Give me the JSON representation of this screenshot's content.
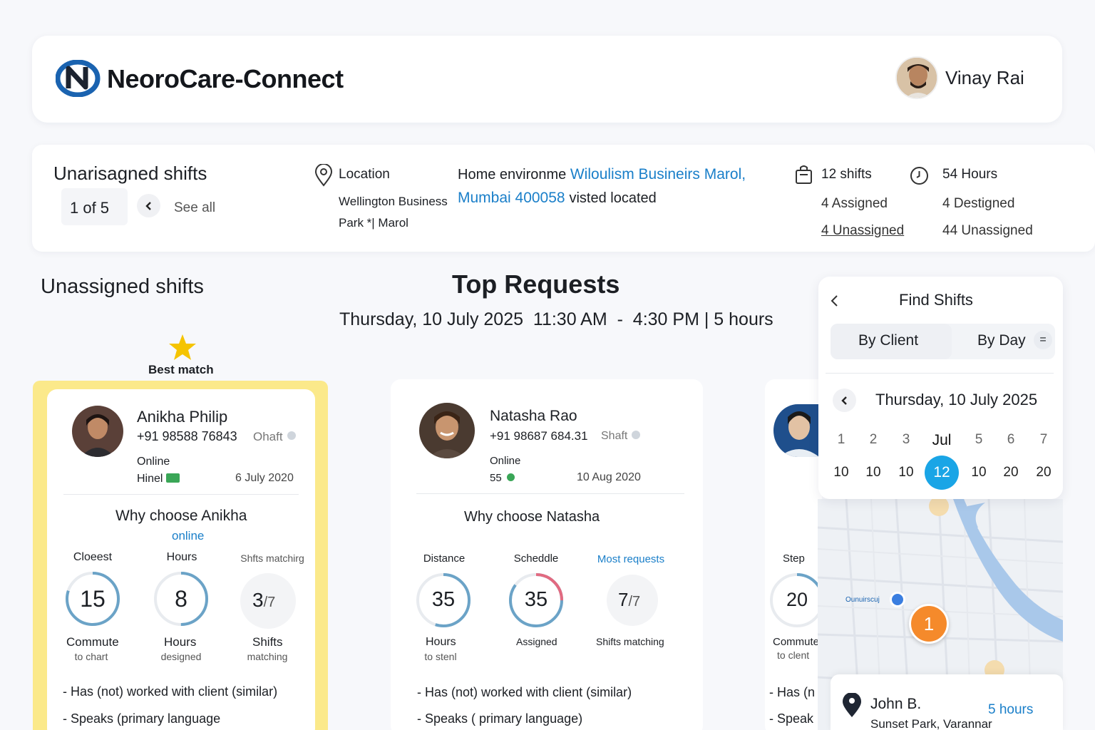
{
  "header": {
    "brand_part1": "Neoro",
    "brand_part2": "Care-Connect",
    "user_name": "Vinay Rai"
  },
  "infobar": {
    "title": "Unarisagned shifts",
    "pager": "1 of 5",
    "see_all": "See all",
    "location_label": "Location",
    "location_line1": "Wellington Business",
    "location_line2": "Park *| Marol",
    "home_prefix": "Home environme",
    "home_link1": "Wiloulism Busineirs Marol,",
    "home_link2": "Mumbai 400058",
    "home_suffix": "visted located",
    "shifts_total": "12 shifts",
    "shifts_assigned": "4 Assigned",
    "shifts_unassigned": "4 Unassigned",
    "hours_total": "54 Hours",
    "hours_designed": "4 Destigned",
    "hours_unassigned": "44 Unassigned"
  },
  "main": {
    "section_title": "Unassigned shifts",
    "top_requests_title": "Top Requests",
    "date_line": "Thursday, 10 July 2025  11:30 AM  -  4:30 PM | 5 hours",
    "best_match": "Best match"
  },
  "cards": [
    {
      "name": "Anikha Philip",
      "phone": "+91 98588 76843",
      "shift_tag": "Ohaft",
      "status": "Online",
      "extra": "Hinel",
      "date": "6 July 2020",
      "why": "Why choose Anikha",
      "online_tag": "online",
      "metrics": [
        {
          "label": "Cloeest",
          "value": "15",
          "sub1": "Commute",
          "sub2": "to chart",
          "fraction": 0.8
        },
        {
          "label": "Hours",
          "value": "8",
          "sub1": "Hours",
          "sub2": "designed",
          "fraction": 0.5
        },
        {
          "label": "Shfts matchirg",
          "value": "3",
          "value_of": "/7",
          "sub1": "Shifts",
          "sub2": "matching",
          "fraction": 0
        }
      ],
      "bullets": [
        "- Has (not) worked with client (similar)",
        "- Speaks (primary language"
      ]
    },
    {
      "name": "Natasha Rao",
      "phone": "+91 98687 684.31",
      "shift_tag": "Shaft",
      "status": "Online",
      "extra": "55",
      "date": "10 Aug 2020",
      "why": "Why choose Natasha",
      "metrics": [
        {
          "label": "Distance",
          "value": "35",
          "sub1": "Hours",
          "sub2": "to stenl",
          "fraction": 0.55
        },
        {
          "label": "Scheddle",
          "value": "35",
          "sub1": "Assigned",
          "sub2": "",
          "fraction": 0.85
        },
        {
          "label": "Most requests",
          "value": "7",
          "value_of": "/7",
          "sub1": "Shifts matching",
          "sub2": "",
          "fraction": 0
        }
      ],
      "bullets": [
        "- Has (not) worked with client (similar)",
        "- Speaks ( primary language)"
      ]
    },
    {
      "metric_label": "Step",
      "metric_value": "20",
      "metric_sub1": "Commute",
      "metric_sub2": "to clent",
      "bullets": [
        "- Has (n",
        "- Speak"
      ]
    }
  ],
  "find_shifts": {
    "title": "Find Shifts",
    "tab_client": "By Client",
    "tab_day": "By Day",
    "filter_icon_label": "=",
    "date": "Thursday, 10 July 2025",
    "days": [
      "1",
      "2",
      "3",
      "Jul",
      "5",
      "6",
      "7"
    ],
    "dates": [
      "10",
      "10",
      "10",
      "12",
      "10",
      "20",
      "20"
    ],
    "selected_index": 3
  },
  "map": {
    "pin_number": "1",
    "place_label": "Ounuirscuj",
    "john_name": "John B.",
    "john_hours": "5 hours",
    "john_address": "Sunset Park, Varannar"
  },
  "colors": {
    "accent": "#1a7fc9",
    "highlight": "#fbe98a",
    "calendar_selected": "#1aa5e6",
    "pin": "#f58a2b",
    "star": "#f5c400"
  }
}
